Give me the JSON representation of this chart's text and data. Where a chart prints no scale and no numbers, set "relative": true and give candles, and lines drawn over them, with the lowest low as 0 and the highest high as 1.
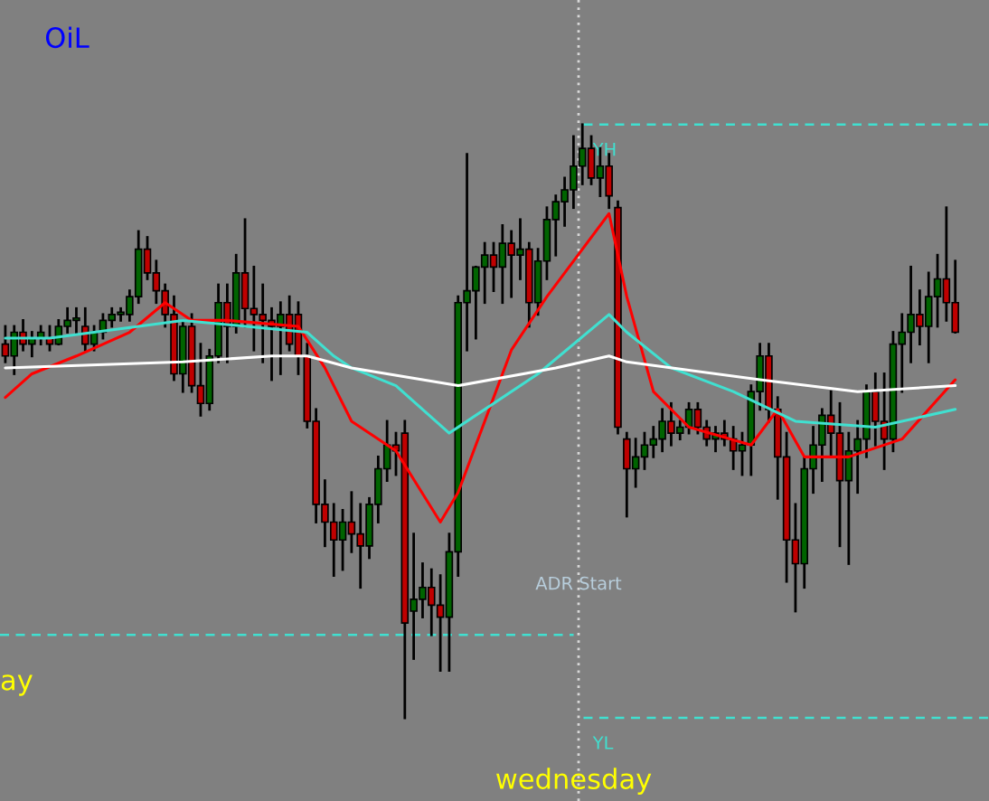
{
  "chart_data": {
    "type": "candlestick",
    "title": "OiL",
    "relative": true,
    "grid": false,
    "legend": false,
    "categories": [
      null,
      null,
      null,
      null,
      null,
      null,
      null,
      null,
      null,
      null,
      null,
      null,
      null,
      null,
      null,
      null,
      null,
      null,
      null,
      null,
      null,
      null,
      null,
      null,
      null,
      null,
      null,
      null,
      null,
      null,
      null,
      null,
      null,
      null,
      null,
      null,
      null,
      null,
      null,
      null,
      null,
      null,
      null,
      null,
      null,
      null,
      null,
      null,
      null,
      null,
      null,
      null,
      null,
      null,
      null,
      null,
      null,
      null,
      null,
      null,
      null,
      null,
      null,
      null,
      null,
      null,
      null,
      null,
      null,
      null,
      null,
      null,
      null,
      null,
      null,
      null,
      null,
      null,
      null,
      null,
      null,
      null,
      null,
      null,
      null,
      null,
      null,
      null,
      null,
      null,
      null,
      null,
      null,
      null,
      null,
      null,
      null,
      null,
      null,
      null,
      null,
      null,
      null,
      null,
      null,
      null,
      null,
      null
    ],
    "colors": [
      "#c00000",
      "#006400",
      "#c00000",
      "#006400",
      "#006400",
      "#c00000",
      "#006400",
      "#006400",
      "#006400",
      "#c00000",
      "#006400",
      "#006400",
      "#006400",
      "#006400",
      "#006400",
      "#006400",
      "#c00000",
      "#c00000",
      "#c00000",
      "#c00000",
      "#006400",
      "#c00000",
      "#c00000",
      "#006400",
      "#006400",
      "#c00000",
      "#006400",
      "#c00000",
      "#c00000",
      "#c00000",
      "#c00000",
      "#006400",
      "#c00000",
      "#c00000",
      "#c00000",
      "#c00000",
      "#c00000",
      "#c00000",
      "#006400",
      "#c00000",
      "#c00000",
      "#006400",
      "#006400",
      "#006400",
      "#c00000",
      "#c00000",
      "#006400",
      "#006400",
      "#c00000",
      "#c00000",
      "#006400",
      "#006400",
      "#006400",
      "#006400",
      "#006400",
      "#c00000",
      "#006400",
      "#c00000",
      "#006400",
      "#c00000",
      "#006400",
      "#006400",
      "#006400",
      "#006400",
      "#006400",
      "#006400",
      "#c00000",
      "#006400",
      "#c00000",
      "#c00000",
      "#c00000",
      "#006400",
      "#006400",
      "#006400",
      "#006400",
      "#c00000",
      "#006400",
      "#006400",
      "#c00000",
      "#c00000",
      "#006400",
      "#c00000",
      "#c00000",
      "#006400",
      "#006400",
      "#006400",
      "#c00000",
      "#c00000",
      "#c00000",
      "#c00000",
      "#006400",
      "#006400",
      "#006400",
      "#c00000",
      "#c00000",
      "#006400",
      "#006400",
      "#006400",
      "#c00000",
      "#c00000",
      "#006400",
      "#006400",
      "#006400",
      "#c00000",
      "#006400",
      "#006400",
      "#c00000",
      "#c00000"
    ],
    "ohlc": [
      [
        0.63,
        0.66,
        0.6,
        0.61
      ],
      [
        0.61,
        0.66,
        0.58,
        0.65
      ],
      [
        0.65,
        0.67,
        0.62,
        0.63
      ],
      [
        0.63,
        0.65,
        0.61,
        0.64
      ],
      [
        0.64,
        0.66,
        0.63,
        0.65
      ],
      [
        0.64,
        0.66,
        0.62,
        0.63
      ],
      [
        0.63,
        0.67,
        0.63,
        0.66
      ],
      [
        0.66,
        0.69,
        0.65,
        0.67
      ],
      [
        0.67,
        0.69,
        0.65,
        0.67
      ],
      [
        0.66,
        0.69,
        0.62,
        0.63
      ],
      [
        0.63,
        0.66,
        0.62,
        0.65
      ],
      [
        0.65,
        0.68,
        0.64,
        0.67
      ],
      [
        0.67,
        0.69,
        0.66,
        0.68
      ],
      [
        0.68,
        0.69,
        0.67,
        0.68
      ],
      [
        0.68,
        0.72,
        0.67,
        0.71
      ],
      [
        0.71,
        0.82,
        0.7,
        0.79
      ],
      [
        0.79,
        0.81,
        0.74,
        0.75
      ],
      [
        0.75,
        0.77,
        0.7,
        0.72
      ],
      [
        0.72,
        0.73,
        0.66,
        0.68
      ],
      [
        0.68,
        0.71,
        0.57,
        0.58
      ],
      [
        0.58,
        0.67,
        0.55,
        0.66
      ],
      [
        0.66,
        0.68,
        0.55,
        0.56
      ],
      [
        0.56,
        0.63,
        0.51,
        0.53
      ],
      [
        0.53,
        0.62,
        0.52,
        0.61
      ],
      [
        0.61,
        0.73,
        0.6,
        0.7
      ],
      [
        0.7,
        0.73,
        0.6,
        0.66
      ],
      [
        0.66,
        0.78,
        0.65,
        0.75
      ],
      [
        0.75,
        0.84,
        0.66,
        0.69
      ],
      [
        0.69,
        0.76,
        0.62,
        0.68
      ],
      [
        0.68,
        0.73,
        0.6,
        0.67
      ],
      [
        0.67,
        0.69,
        0.57,
        0.66
      ],
      [
        0.66,
        0.7,
        0.58,
        0.68
      ],
      [
        0.68,
        0.71,
        0.62,
        0.63
      ],
      [
        0.68,
        0.7,
        0.58,
        0.61
      ],
      [
        0.61,
        0.63,
        0.49,
        0.5
      ],
      [
        0.5,
        0.52,
        0.33,
        0.36
      ],
      [
        0.36,
        0.4,
        0.29,
        0.33
      ],
      [
        0.33,
        0.36,
        0.24,
        0.3
      ],
      [
        0.3,
        0.35,
        0.25,
        0.33
      ],
      [
        0.33,
        0.38,
        0.28,
        0.31
      ],
      [
        0.31,
        0.36,
        0.22,
        0.29
      ],
      [
        0.29,
        0.37,
        0.27,
        0.36
      ],
      [
        0.36,
        0.44,
        0.33,
        0.42
      ],
      [
        0.42,
        0.5,
        0.4,
        0.46
      ],
      [
        0.46,
        0.48,
        0.41,
        0.45
      ],
      [
        0.48,
        0.5,
        0.0,
        0.16
      ],
      [
        0.18,
        0.31,
        0.1,
        0.2
      ],
      [
        0.2,
        0.26,
        0.17,
        0.22
      ],
      [
        0.22,
        0.25,
        0.14,
        0.19
      ],
      [
        0.19,
        0.24,
        0.08,
        0.17
      ],
      [
        0.17,
        0.31,
        0.08,
        0.28
      ],
      [
        0.28,
        0.71,
        0.24,
        0.7
      ],
      [
        0.7,
        0.95,
        0.62,
        0.72
      ],
      [
        0.72,
        0.76,
        0.64,
        0.76
      ],
      [
        0.76,
        0.8,
        0.7,
        0.78
      ],
      [
        0.78,
        0.8,
        0.72,
        0.76
      ],
      [
        0.76,
        0.83,
        0.7,
        0.8
      ],
      [
        0.8,
        0.82,
        0.71,
        0.78
      ],
      [
        0.78,
        0.84,
        0.74,
        0.79
      ],
      [
        0.79,
        0.8,
        0.66,
        0.7
      ],
      [
        0.7,
        0.79,
        0.68,
        0.77
      ],
      [
        0.77,
        0.86,
        0.74,
        0.84
      ],
      [
        0.84,
        0.88,
        0.78,
        0.87
      ],
      [
        0.87,
        0.91,
        0.83,
        0.89
      ],
      [
        0.89,
        0.98,
        0.86,
        0.93
      ],
      [
        0.93,
        1.0,
        0.9,
        0.96
      ],
      [
        0.96,
        0.98,
        0.9,
        0.91
      ],
      [
        0.91,
        0.96,
        0.88,
        0.93
      ],
      [
        0.93,
        0.95,
        0.86,
        0.88
      ],
      [
        0.86,
        0.87,
        0.48,
        0.49
      ],
      [
        0.47,
        0.48,
        0.34,
        0.42
      ],
      [
        0.42,
        0.47,
        0.39,
        0.44
      ],
      [
        0.44,
        0.48,
        0.42,
        0.46
      ],
      [
        0.46,
        0.49,
        0.44,
        0.47
      ],
      [
        0.47,
        0.52,
        0.45,
        0.5
      ],
      [
        0.5,
        0.53,
        0.46,
        0.48
      ],
      [
        0.48,
        0.5,
        0.47,
        0.49
      ],
      [
        0.49,
        0.53,
        0.48,
        0.52
      ],
      [
        0.52,
        0.53,
        0.48,
        0.49
      ],
      [
        0.49,
        0.5,
        0.46,
        0.47
      ],
      [
        0.47,
        0.49,
        0.45,
        0.48
      ],
      [
        0.48,
        0.5,
        0.46,
        0.47
      ],
      [
        0.47,
        0.49,
        0.42,
        0.45
      ],
      [
        0.45,
        0.48,
        0.41,
        0.46
      ],
      [
        0.46,
        0.56,
        0.41,
        0.55
      ],
      [
        0.55,
        0.63,
        0.52,
        0.61
      ],
      [
        0.61,
        0.63,
        0.5,
        0.52
      ],
      [
        0.52,
        0.54,
        0.37,
        0.44
      ],
      [
        0.44,
        0.48,
        0.23,
        0.3
      ],
      [
        0.3,
        0.36,
        0.18,
        0.26
      ],
      [
        0.26,
        0.44,
        0.22,
        0.42
      ],
      [
        0.42,
        0.49,
        0.38,
        0.46
      ],
      [
        0.46,
        0.52,
        0.4,
        0.51
      ],
      [
        0.51,
        0.55,
        0.44,
        0.48
      ],
      [
        0.48,
        0.53,
        0.29,
        0.4
      ],
      [
        0.4,
        0.48,
        0.26,
        0.45
      ],
      [
        0.45,
        0.5,
        0.38,
        0.47
      ],
      [
        0.47,
        0.56,
        0.44,
        0.55
      ],
      [
        0.55,
        0.58,
        0.46,
        0.5
      ],
      [
        0.5,
        0.58,
        0.42,
        0.47
      ],
      [
        0.47,
        0.65,
        0.45,
        0.63
      ],
      [
        0.63,
        0.68,
        0.55,
        0.65
      ],
      [
        0.65,
        0.76,
        0.6,
        0.68
      ],
      [
        0.68,
        0.72,
        0.63,
        0.66
      ],
      [
        0.66,
        0.75,
        0.6,
        0.71
      ],
      [
        0.71,
        0.78,
        0.66,
        0.74
      ],
      [
        0.74,
        0.86,
        0.67,
        0.7
      ],
      [
        0.7,
        0.77,
        0.65,
        0.65
      ]
    ],
    "series": [
      {
        "type": "line",
        "color": "#ff0000",
        "values": [
          0.54,
          null,
          null,
          0.58,
          null,
          null,
          null,
          null,
          0.61,
          null,
          null,
          null,
          null,
          null,
          0.65,
          null,
          null,
          null,
          0.7,
          null,
          null,
          0.67,
          null,
          null,
          null,
          0.67,
          null,
          null,
          null,
          null,
          null,
          null,
          null,
          0.66,
          null,
          null,
          0.59,
          null,
          null,
          0.5,
          null,
          null,
          null,
          null,
          0.45,
          null,
          null,
          null,
          null,
          0.33,
          null,
          0.38,
          null,
          null,
          null,
          null,
          null,
          0.62,
          null,
          null,
          null,
          0.71,
          null,
          null,
          null,
          null,
          null,
          null,
          0.85,
          0.78,
          0.71,
          null,
          null,
          0.55,
          null,
          null,
          null,
          0.49,
          null,
          null,
          null,
          null,
          null,
          null,
          0.46,
          null,
          null,
          0.52,
          null,
          null,
          0.44,
          null,
          null,
          null,
          null,
          0.44,
          null,
          null,
          null,
          null,
          null,
          0.47,
          null,
          null,
          null,
          null,
          null,
          0.57
        ]
      },
      {
        "type": "line",
        "color": "#40e0d0",
        "values": [
          0.64,
          null,
          null,
          null,
          null,
          0.64,
          null,
          null,
          null,
          null,
          null,
          null,
          null,
          null,
          null,
          null,
          null,
          null,
          null,
          null,
          0.67,
          null,
          null,
          null,
          null,
          null,
          null,
          null,
          null,
          null,
          null,
          null,
          null,
          null,
          0.65,
          null,
          null,
          0.61,
          null,
          0.59,
          null,
          null,
          null,
          null,
          0.56,
          null,
          null,
          null,
          null,
          null,
          0.48,
          null,
          null,
          null,
          null,
          null,
          null,
          null,
          null,
          null,
          0.58,
          null,
          null,
          null,
          null,
          null,
          null,
          null,
          0.68,
          null,
          0.65,
          null,
          null,
          null,
          null,
          0.59,
          null,
          null,
          null,
          null,
          null,
          null,
          0.55,
          null,
          null,
          null,
          null,
          null,
          null,
          0.5,
          null,
          null,
          null,
          null,
          null,
          null,
          null,
          null,
          0.49,
          null,
          null,
          null,
          null,
          null,
          null,
          null,
          null,
          0.52
        ]
      },
      {
        "type": "line",
        "color": "#ffffff",
        "values": [
          0.59,
          null,
          null,
          null,
          null,
          null,
          null,
          null,
          null,
          null,
          null,
          null,
          null,
          null,
          null,
          null,
          null,
          null,
          null,
          null,
          0.6,
          null,
          null,
          null,
          null,
          null,
          null,
          null,
          null,
          null,
          0.61,
          null,
          null,
          null,
          0.61,
          null,
          null,
          null,
          null,
          0.59,
          null,
          null,
          null,
          null,
          null,
          null,
          null,
          null,
          null,
          null,
          null,
          0.56,
          null,
          null,
          null,
          null,
          null,
          null,
          null,
          null,
          null,
          null,
          0.59,
          null,
          null,
          null,
          null,
          null,
          0.61,
          null,
          0.6,
          null,
          null,
          null,
          null,
          null,
          null,
          null,
          null,
          null,
          null,
          null,
          null,
          null,
          null,
          0.57,
          null,
          null,
          null,
          null,
          null,
          null,
          null,
          null,
          null,
          null,
          0.55,
          null,
          null,
          null,
          null,
          null,
          null,
          null,
          null,
          null,
          null,
          0.56
        ]
      }
    ],
    "ref_lines": [
      {
        "axis": "y",
        "value": 1.0,
        "label": "YH",
        "color": "#40e0d0",
        "line_style": "dashed"
      },
      {
        "axis": "y",
        "value": 0.0,
        "label": "YL",
        "color": "#40e0d0",
        "line_style": "dashed"
      },
      {
        "axis": "y",
        "value": 0.14,
        "color": "#40e0d0",
        "line_style": "dashed"
      }
    ],
    "annotations": [
      "ay",
      "ADR Start",
      "wednesday"
    ]
  }
}
